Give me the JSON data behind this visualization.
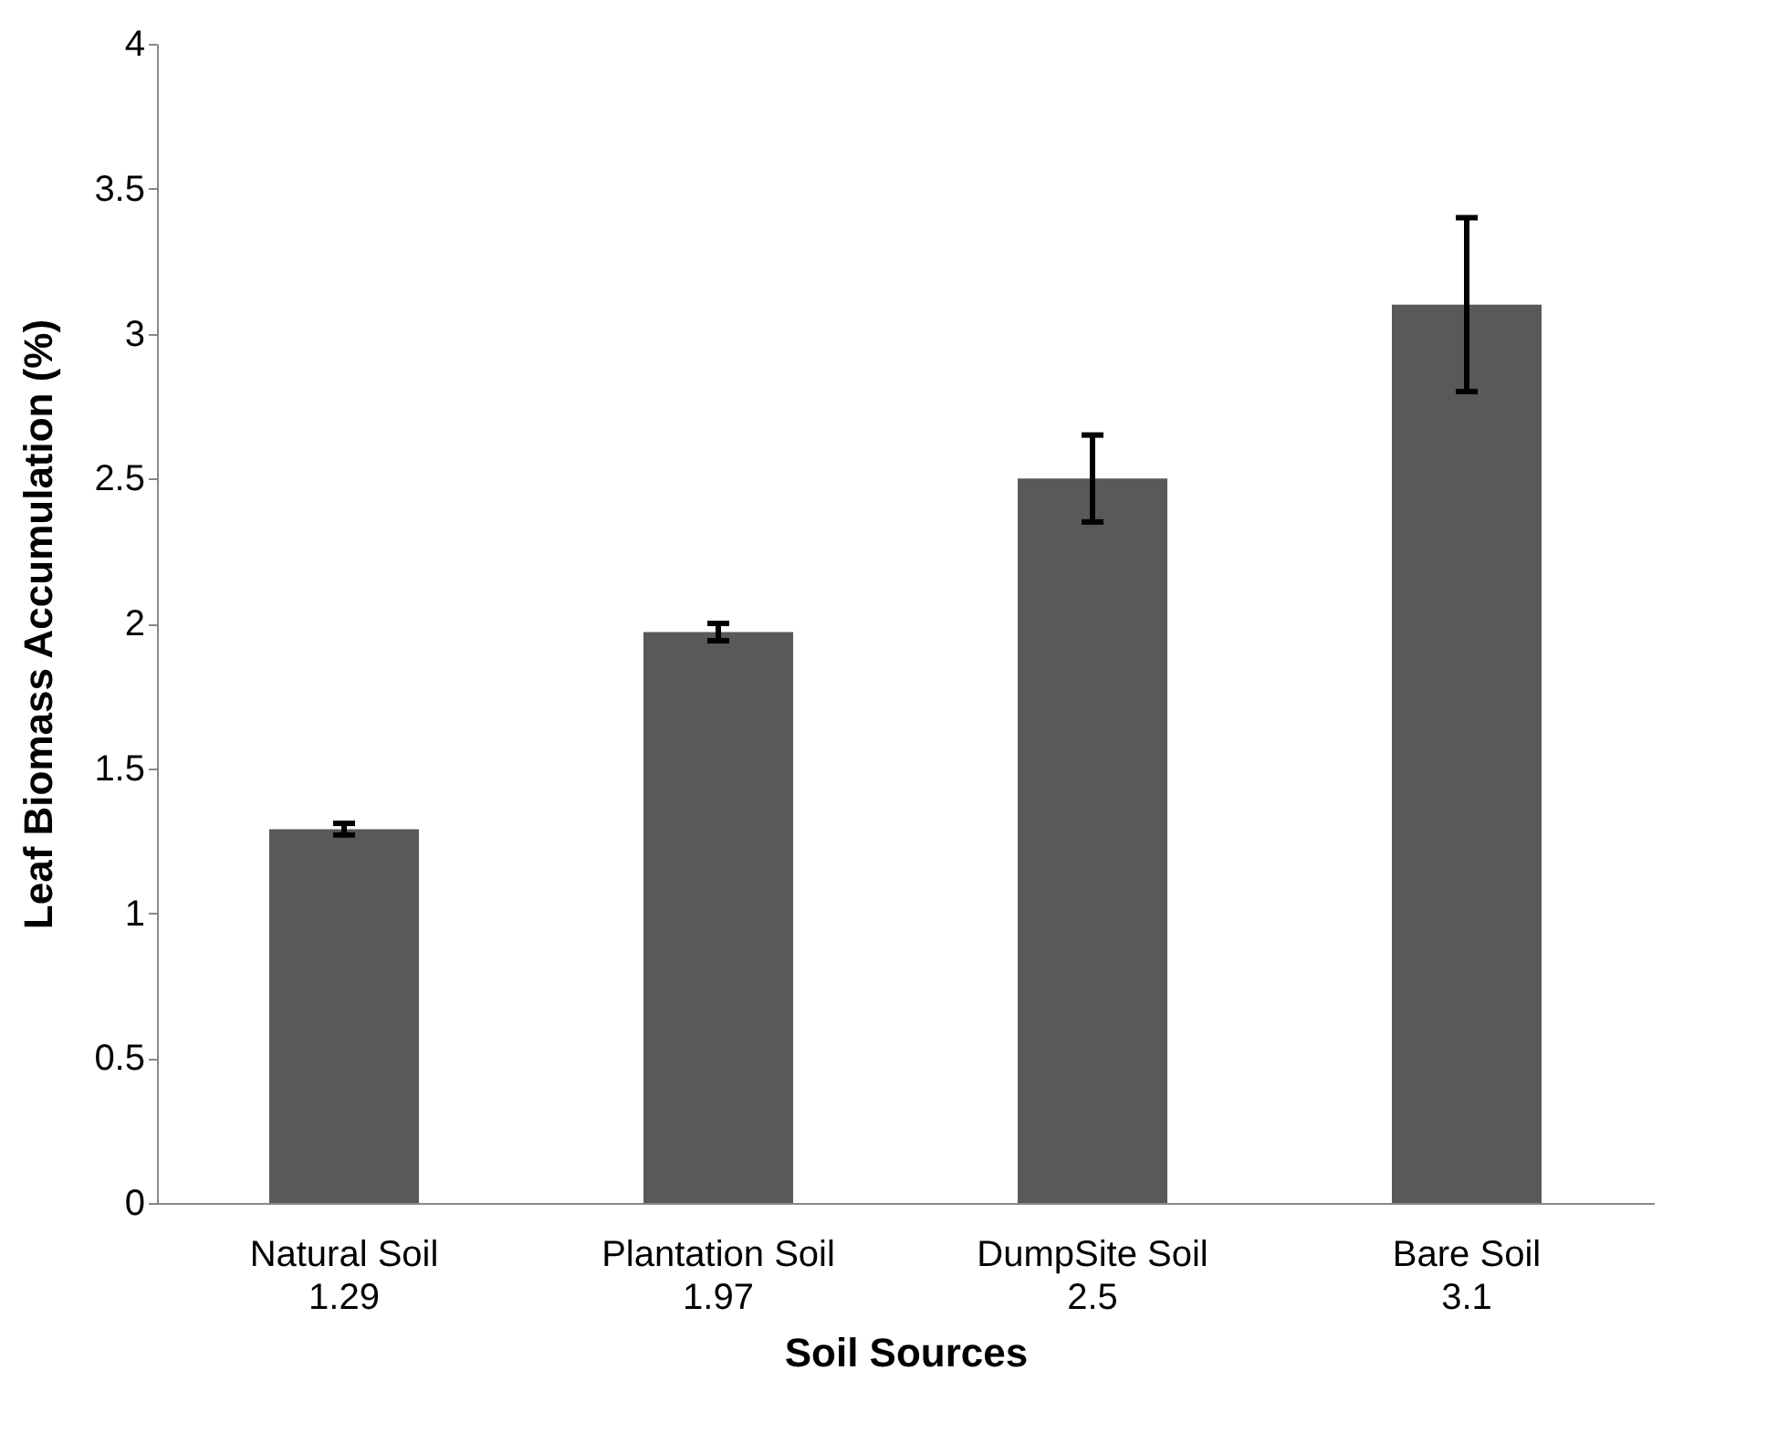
{
  "chart_data": {
    "type": "bar",
    "xlabel": "Soil Sources",
    "ylabel": "Leaf Biomass Accumulation (%)",
    "categories": [
      "Natural Soil",
      "Plantation Soil",
      "DumpSite Soil",
      "Bare Soil"
    ],
    "values": [
      1.29,
      1.97,
      2.5,
      3.1
    ],
    "errors": [
      0.02,
      0.03,
      0.15,
      0.3
    ],
    "color": "#595959",
    "ylim": [
      0,
      4
    ],
    "yticks": [
      0,
      0.5,
      1,
      1.5,
      2,
      2.5,
      3,
      3.5,
      4
    ],
    "grid": false,
    "data_labels": true
  }
}
